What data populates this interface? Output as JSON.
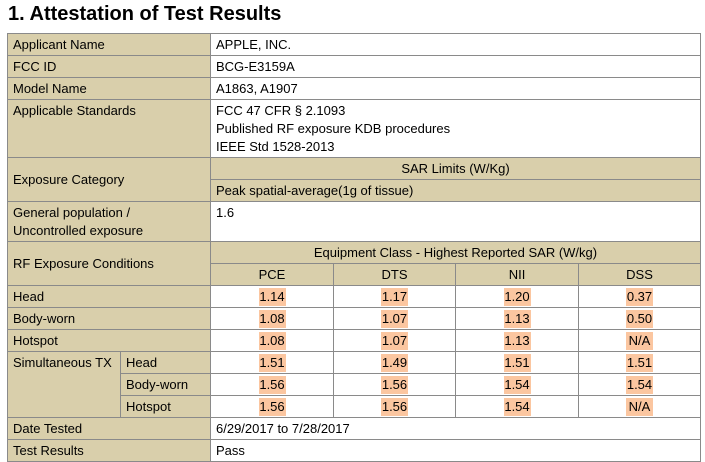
{
  "title": "1. Attestation of Test Results",
  "table": {
    "info": [
      {
        "label": "Applicant Name",
        "value": "APPLE, INC."
      },
      {
        "label": "FCC ID",
        "value": "BCG-E3159A"
      },
      {
        "label": "Model Name",
        "value": "A1863, A1907"
      }
    ],
    "standards": {
      "label": "Applicable Standards",
      "lines": [
        "FCC 47 CFR § 2.1093",
        "Published RF exposure KDB procedures",
        "IEEE Std 1528-2013"
      ]
    },
    "exposure_category": {
      "label": "Exposure Category",
      "header": "SAR Limits (W/Kg)",
      "subheader": "Peak spatial-average(1g of tissue)"
    },
    "general_population": {
      "label_lines": [
        "General population /",
        "Uncontrolled exposure"
      ],
      "value": "1.6"
    },
    "rf_exposure": {
      "label": "RF Exposure Conditions",
      "header": "Equipment Class - Highest Reported SAR (W/kg)",
      "columns": [
        "PCE",
        "DTS",
        "NII",
        "DSS"
      ],
      "rows": [
        {
          "label": "Head",
          "values": [
            "1.14",
            "1.17",
            "1.20",
            "0.37"
          ]
        },
        {
          "label": "Body-worn",
          "values": [
            "1.08",
            "1.07",
            "1.13",
            "0.50"
          ]
        },
        {
          "label": "Hotspot",
          "values": [
            "1.08",
            "1.07",
            "1.13",
            "N/A"
          ]
        }
      ],
      "simultaneous": {
        "label": "Simultaneous TX",
        "rows": [
          {
            "label": "Head",
            "values": [
              "1.51",
              "1.49",
              "1.51",
              "1.51"
            ]
          },
          {
            "label": "Body-worn",
            "values": [
              "1.56",
              "1.56",
              "1.54",
              "1.54"
            ]
          },
          {
            "label": "Hotspot",
            "values": [
              "1.56",
              "1.56",
              "1.54",
              "N/A"
            ]
          }
        ]
      }
    },
    "footer": [
      {
        "label": "Date Tested",
        "value": "6/29/2017 to 7/28/2017"
      },
      {
        "label": "Test Results",
        "value": "Pass"
      }
    ]
  }
}
